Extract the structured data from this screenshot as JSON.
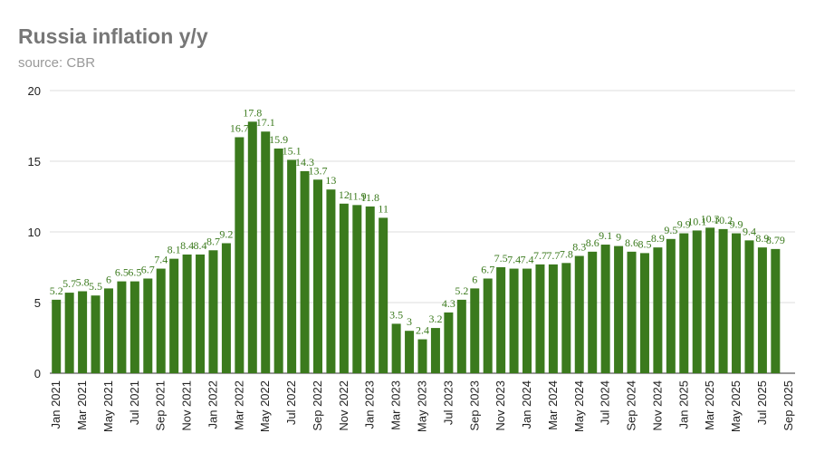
{
  "chart_data": {
    "type": "bar",
    "title": "Russia inflation y/y",
    "subtitle": "source: CBR",
    "categories": [
      "Jan 2021",
      null,
      "Mar 2021",
      null,
      "May 2021",
      null,
      "Jul 2021",
      null,
      "Sep 2021",
      null,
      "Nov 2021",
      null,
      "Jan 2022",
      null,
      "Mar 2022",
      null,
      "May 2022",
      null,
      "Jul 2022",
      null,
      "Sep 2022",
      null,
      "Nov 2022",
      null,
      "Jan 2023",
      null,
      "Mar 2023",
      null,
      "May 2023",
      null,
      "Jul 2023",
      null,
      "Sep 2023",
      null,
      "Nov 2023",
      null,
      "Jan 2024",
      null,
      "Mar 2024",
      null,
      "May 2024",
      null,
      "Jul 2024",
      null,
      "Sep 2024",
      null,
      "Nov 2024",
      null,
      "Jan 2025",
      null,
      "Mar 2025",
      null,
      "May 2025",
      null,
      "Jul 2025",
      null,
      "Sep 2025"
    ],
    "values": [
      5.2,
      5.7,
      5.8,
      5.5,
      6,
      6.5,
      6.5,
      6.7,
      7.4,
      8.1,
      8.4,
      8.4,
      8.7,
      9.2,
      16.7,
      17.8,
      17.1,
      15.9,
      15.1,
      14.3,
      13.7,
      13,
      12,
      11.9,
      11.8,
      11,
      3.5,
      3,
      2.4,
      3.2,
      4.3,
      5.2,
      6,
      6.7,
      7.5,
      7.4,
      7.4,
      7.7,
      7.7,
      7.8,
      8.3,
      8.6,
      9.1,
      9,
      8.6,
      8.5,
      8.9,
      9.5,
      9.9,
      10.1,
      10.3,
      10.2,
      9.9,
      9.4,
      8.9,
      8.79,
      null
    ],
    "color": "#3b7a1d",
    "ylim": [
      0,
      20
    ],
    "yticks": [
      0,
      5,
      10,
      15,
      20
    ],
    "grid": true
  }
}
